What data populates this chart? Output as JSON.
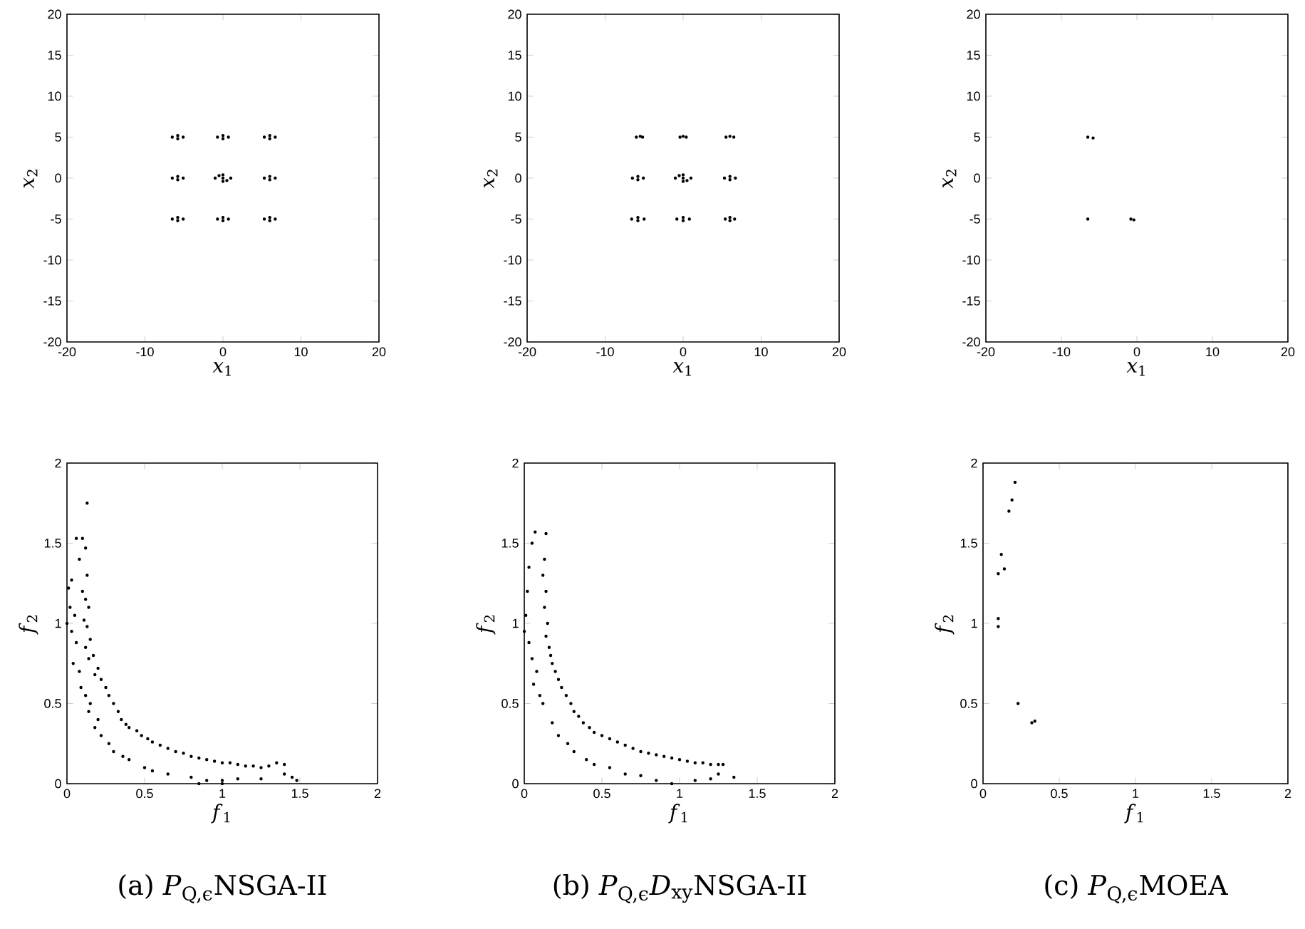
{
  "chart_data": [
    {
      "type": "scatter",
      "xlabel": "*x*$_{1}$",
      "ylabel": "*x*$_{2}$",
      "xlim": [
        -20,
        20
      ],
      "ylim": [
        -20,
        20
      ],
      "xticks": [
        -20,
        -10,
        0,
        10,
        20
      ],
      "yticks": [
        -20,
        -15,
        -10,
        -5,
        0,
        5,
        10,
        15,
        20
      ],
      "color": "#000000",
      "x": [
        -6.5,
        -5.8,
        -5.1,
        -5.8,
        -0.7,
        0,
        0.7,
        0,
        5.3,
        6,
        6.7,
        6,
        -6.5,
        -5.8,
        -5.1,
        -5.8,
        -1,
        -0.5,
        0,
        0.5,
        1,
        0,
        0,
        5.3,
        6,
        6.7,
        6,
        -6.5,
        -5.8,
        -5.1,
        -5.8,
        -0.7,
        0,
        0.7,
        0,
        5.3,
        6,
        6.7,
        6
      ],
      "values": [
        5,
        5.2,
        5,
        4.8,
        5,
        5.2,
        5,
        4.8,
        5,
        5.2,
        5,
        4.8,
        0,
        0.2,
        0,
        -0.2,
        0,
        0.3,
        0,
        -0.3,
        0,
        0.4,
        -0.4,
        0,
        0.2,
        0,
        -0.2,
        -5,
        -4.8,
        -5,
        -5.2,
        -5,
        -4.8,
        -5,
        -5.2,
        -5,
        -4.8,
        -5,
        -5.2
      ]
    },
    {
      "type": "scatter",
      "xlabel": "*x*$_{1}$",
      "ylabel": "*x*$_{2}$",
      "xlim": [
        -20,
        20
      ],
      "ylim": [
        -20,
        20
      ],
      "xticks": [
        -20,
        -10,
        0,
        10,
        20
      ],
      "yticks": [
        -20,
        -15,
        -10,
        -5,
        0,
        5,
        10,
        15,
        20
      ],
      "color": "#000000",
      "x": [
        -6,
        -5.5,
        -5.2,
        -0.4,
        0,
        0.4,
        5.5,
        6,
        6.5,
        -6.5,
        -5.8,
        -5.1,
        -5.8,
        -1,
        -0.5,
        0,
        0.5,
        1,
        0,
        0,
        5.3,
        6,
        6.7,
        6,
        -6.6,
        -5.8,
        -5,
        -5.8,
        -0.8,
        0,
        0.8,
        0,
        5.4,
        6,
        6.6,
        6
      ],
      "values": [
        5,
        5.1,
        5,
        5,
        5.1,
        5,
        5,
        5.1,
        5,
        0,
        0.2,
        0,
        -0.2,
        0,
        0.3,
        0,
        -0.3,
        0,
        0.4,
        -0.4,
        0,
        0.2,
        0,
        -0.2,
        -5,
        -4.8,
        -5,
        -5.2,
        -5,
        -4.8,
        -5,
        -5.2,
        -5,
        -4.8,
        -5,
        -5.2
      ]
    },
    {
      "type": "scatter",
      "xlabel": "*x*$_{1}$",
      "ylabel": "*x*$_{2}$",
      "xlim": [
        -20,
        20
      ],
      "ylim": [
        -20,
        20
      ],
      "xticks": [
        -20,
        -10,
        0,
        10,
        20
      ],
      "yticks": [
        -20,
        -15,
        -10,
        -5,
        0,
        5,
        10,
        15,
        20
      ],
      "color": "#000000",
      "x": [
        -6.5,
        -5.8,
        -6.5,
        -0.8,
        -0.4
      ],
      "values": [
        5,
        4.9,
        -5,
        -5,
        -5.1
      ]
    },
    {
      "type": "scatter",
      "xlabel": "*f*$_{1}$",
      "ylabel": "*f*$_{2}$",
      "xlim": [
        0,
        2
      ],
      "ylim": [
        0,
        2
      ],
      "xticks": [
        0,
        0.5,
        1,
        1.5,
        2
      ],
      "yticks": [
        0,
        0.5,
        1,
        1.5,
        2
      ],
      "color": "#000000",
      "annotations": [
        "(a) *P*$_{Q,ϵ}$NSGA-II"
      ],
      "x": [
        0.13,
        0.06,
        0.1,
        0.12,
        0.08,
        0.13,
        0.01,
        0.03,
        0.1,
        0.12,
        0.14,
        0.02,
        0.05,
        0.11,
        0.13,
        0.03,
        0.0,
        0.15,
        0.12,
        0.06,
        0.17,
        0.14,
        0.04,
        0.08,
        0.2,
        0.18,
        0.22,
        0.09,
        0.25,
        0.12,
        0.27,
        0.15,
        0.3,
        0.14,
        0.33,
        0.2,
        0.35,
        0.38,
        0.18,
        0.4,
        0.45,
        0.22,
        0.48,
        0.52,
        0.27,
        0.55,
        0.6,
        0.3,
        0.65,
        0.7,
        0.36,
        0.75,
        0.8,
        0.4,
        0.85,
        0.9,
        0.5,
        0.95,
        1.0,
        0.55,
        1.05,
        1.1,
        0.65,
        1.15,
        1.2,
        0.8,
        1.25,
        1.3,
        1.35,
        0.9,
        1.0,
        1.1,
        1.25,
        1.4,
        1.4,
        1.45,
        1.48,
        0.85,
        1.0
      ],
      "values": [
        1.75,
        1.53,
        1.53,
        1.47,
        1.4,
        1.3,
        1.22,
        1.27,
        1.2,
        1.15,
        1.1,
        1.1,
        1.05,
        1.02,
        0.98,
        0.95,
        1.0,
        0.9,
        0.85,
        0.88,
        0.8,
        0.78,
        0.75,
        0.7,
        0.72,
        0.68,
        0.65,
        0.6,
        0.6,
        0.55,
        0.55,
        0.5,
        0.5,
        0.45,
        0.45,
        0.4,
        0.4,
        0.37,
        0.35,
        0.35,
        0.33,
        0.3,
        0.3,
        0.28,
        0.25,
        0.26,
        0.24,
        0.2,
        0.22,
        0.2,
        0.17,
        0.19,
        0.17,
        0.15,
        0.16,
        0.15,
        0.1,
        0.14,
        0.13,
        0.08,
        0.13,
        0.12,
        0.06,
        0.11,
        0.11,
        0.04,
        0.1,
        0.11,
        0.13,
        0.02,
        0.02,
        0.03,
        0.03,
        0.12,
        0.06,
        0.04,
        0.02,
        0.0,
        0.0
      ]
    },
    {
      "type": "scatter",
      "xlabel": "*f*$_{1}$",
      "ylabel": "*f*$_{2}$",
      "xlim": [
        0,
        2
      ],
      "ylim": [
        0,
        2
      ],
      "xticks": [
        0,
        0.5,
        1,
        1.5,
        2
      ],
      "yticks": [
        0,
        0.5,
        1,
        1.5,
        2
      ],
      "color": "#000000",
      "annotations": [
        "(b) *P*$_{Q,ϵ}$*D*$_{xy}$NSGA-II"
      ],
      "x": [
        0.07,
        0.14,
        0.05,
        0.03,
        0.13,
        0.12,
        0.02,
        0.14,
        0.13,
        0.01,
        0.15,
        0.0,
        0.14,
        0.03,
        0.16,
        0.17,
        0.05,
        0.18,
        0.08,
        0.2,
        0.22,
        0.06,
        0.24,
        0.1,
        0.27,
        0.3,
        0.12,
        0.32,
        0.35,
        0.18,
        0.38,
        0.42,
        0.22,
        0.45,
        0.5,
        0.28,
        0.55,
        0.6,
        0.32,
        0.65,
        0.7,
        0.4,
        0.75,
        0.8,
        0.45,
        0.85,
        0.9,
        0.55,
        0.95,
        1.0,
        0.65,
        1.05,
        1.1,
        0.75,
        1.15,
        1.2,
        0.85,
        1.25,
        1.28,
        0.95,
        1.1,
        1.2,
        1.25,
        1.35
      ],
      "values": [
        1.57,
        1.56,
        1.5,
        1.35,
        1.4,
        1.3,
        1.2,
        1.2,
        1.1,
        1.05,
        1.0,
        0.95,
        0.92,
        0.88,
        0.85,
        0.8,
        0.78,
        0.75,
        0.7,
        0.7,
        0.65,
        0.62,
        0.6,
        0.55,
        0.55,
        0.5,
        0.5,
        0.45,
        0.42,
        0.38,
        0.38,
        0.35,
        0.3,
        0.32,
        0.3,
        0.25,
        0.28,
        0.26,
        0.2,
        0.24,
        0.22,
        0.15,
        0.2,
        0.19,
        0.12,
        0.18,
        0.17,
        0.1,
        0.16,
        0.15,
        0.06,
        0.14,
        0.13,
        0.05,
        0.13,
        0.12,
        0.02,
        0.12,
        0.12,
        0.0,
        0.02,
        0.03,
        0.06,
        0.04
      ]
    },
    {
      "type": "scatter",
      "xlabel": "*f*$_{1}$",
      "ylabel": "*f*$_{2}$",
      "xlim": [
        0,
        2
      ],
      "ylim": [
        0,
        2
      ],
      "xticks": [
        0,
        0.5,
        1,
        1.5,
        2
      ],
      "yticks": [
        0,
        0.5,
        1,
        1.5,
        2
      ],
      "color": "#000000",
      "annotations": [
        "(c) *P*$_{Q,ϵ}$MOEA"
      ],
      "x": [
        0.21,
        0.19,
        0.17,
        0.12,
        0.14,
        0.1,
        0.1,
        0.1,
        0.23,
        0.32,
        0.34
      ],
      "values": [
        1.88,
        1.77,
        1.7,
        1.43,
        1.34,
        1.31,
        1.03,
        0.98,
        0.5,
        0.38,
        0.39
      ]
    }
  ]
}
